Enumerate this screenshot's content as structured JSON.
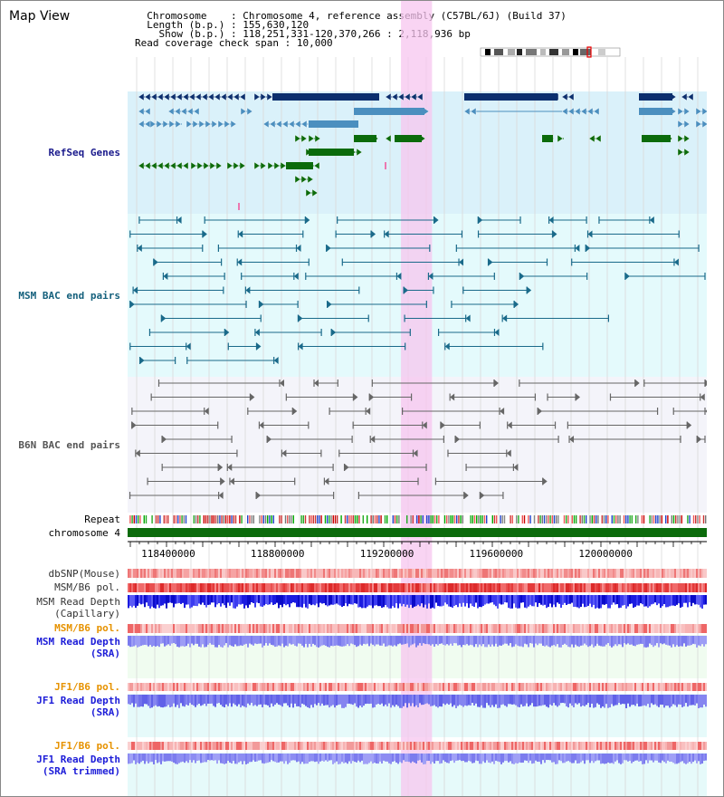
{
  "view": {
    "title": "Map View",
    "header": {
      "chromosome_label": "Chromosome",
      "chromosome_value": "Chromosome 4, reference assembly (C57BL/6J) (Build 37)",
      "length_label": "Length (b.p.)",
      "length_value": "155,630,120",
      "show_label": "Show (b.p.)",
      "show_value": "118,251,331-120,370,266 : 2,118,936 bp",
      "coverage_label": "Read coverage check span",
      "coverage_value": "10,000"
    },
    "range": {
      "start": 118251331,
      "end": 120370266
    },
    "highlight": {
      "start": 119251331,
      "end": 119365000
    },
    "axis_ticks": [
      "118400000",
      "118800000",
      "119200000",
      "119600000",
      "120000000"
    ]
  },
  "tracks": {
    "refseq": {
      "label": "RefSeq Genes",
      "color_dark": "#0b2f6e",
      "color_mid": "#4b8fbf",
      "color_green": "#0b6b0b",
      "bg": "#daf1fa"
    },
    "msm_bac": {
      "label": "MSM BAC end pairs",
      "color": "#1a6a8a",
      "bg": "#e4fafc"
    },
    "b6n_bac": {
      "label": "B6N BAC end pairs",
      "color": "#666666",
      "bg": "#f4f4fa"
    },
    "repeat": {
      "label": "Repeat"
    },
    "chromosome": {
      "label": "chromosome 4",
      "color": "#0b6b0b"
    },
    "dbsnp": {
      "label": "dbSNP(Mouse)"
    },
    "msm_b6_pol_1": {
      "label": "MSM/B6 pol."
    },
    "msm_depth_cap": {
      "label": "MSM Read Depth",
      "label2": "(Capillary)"
    },
    "msm_b6_pol_2": {
      "label": "MSM/B6 pol."
    },
    "msm_depth_sra": {
      "label": "MSM Read Depth",
      "label2": "(SRA)"
    },
    "jf1_b6_pol_1": {
      "label": "JF1/B6 pol."
    },
    "jf1_depth_sra": {
      "label": "JF1 Read Depth",
      "label2": "(SRA)"
    },
    "jf1_b6_pol_2": {
      "label": "JF1/B6 pol."
    },
    "jf1_depth_trim": {
      "label": "JF1 Read Depth",
      "label2": "(SRA trimmed)"
    }
  }
}
